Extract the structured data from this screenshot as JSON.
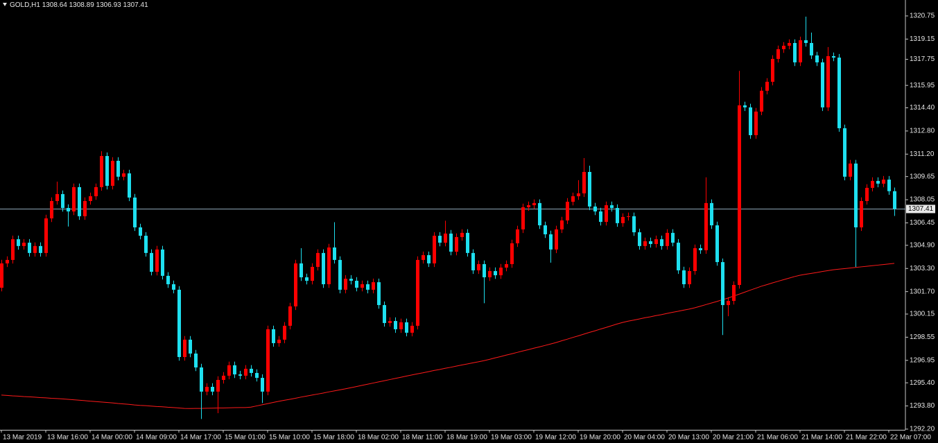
{
  "chart_data": {
    "type": "candlestick",
    "symbol": "GOLD,H1",
    "up_color": "#ff0000",
    "down_color": "#1ee0f0",
    "price_line_color": "#8fa8b8",
    "categories": [
      "13 Mar 2019",
      null,
      null,
      null,
      null,
      null,
      null,
      null,
      "13 Mar 16:00",
      null,
      null,
      null,
      null,
      null,
      null,
      null,
      "14 Mar 00:00",
      null,
      null,
      null,
      null,
      null,
      null,
      null,
      "14 Mar 09:00",
      null,
      null,
      null,
      null,
      null,
      null,
      null,
      "14 Mar 17:00",
      null,
      null,
      null,
      null,
      null,
      null,
      null,
      "15 Mar 01:00",
      null,
      null,
      null,
      null,
      null,
      null,
      null,
      "15 Mar 10:00",
      null,
      null,
      null,
      null,
      null,
      null,
      null,
      "15 Mar 18:00",
      null,
      null,
      null,
      null,
      null,
      null,
      null,
      "18 Mar 02:00",
      null,
      null,
      null,
      null,
      null,
      null,
      null,
      "18 Mar 11:00",
      null,
      null,
      null,
      null,
      null,
      null,
      null,
      "18 Mar 19:00",
      null,
      null,
      null,
      null,
      null,
      null,
      null,
      "19 Mar 03:00",
      null,
      null,
      null,
      null,
      null,
      null,
      null,
      "19 Mar 12:00",
      null,
      null,
      null,
      null,
      null,
      null,
      null,
      "19 Mar 20:00",
      null,
      null,
      null,
      null,
      null,
      null,
      null,
      "20 Mar 04:00",
      null,
      null,
      null,
      null,
      null,
      null,
      null,
      "20 Mar 13:00",
      null,
      null,
      null,
      null,
      null,
      null,
      null,
      "20 Mar 21:00",
      null,
      null,
      null,
      null,
      null,
      null,
      null,
      "21 Mar 06:00",
      null,
      null,
      null,
      null,
      null,
      null,
      null,
      "21 Mar 14:00",
      null,
      null,
      null,
      null,
      null,
      null,
      null,
      "21 Mar 22:00",
      null,
      null,
      null,
      null,
      null,
      null,
      null,
      "22 Mar 07:00",
      null
    ],
    "series": [
      {
        "open": [
          1301.97,
          1303.65,
          1303.89,
          1305.32,
          1304.85,
          1305.08,
          1304.37,
          1304.85,
          1304.37,
          1306.76,
          1307.96,
          1308.44,
          1307.48,
          1307.24,
          1308.92,
          1306.91,
          1307.96,
          1308.29,
          1308.92,
          1311.07,
          1309.01,
          1310.74,
          1309.64,
          1309.87,
          1308.2,
          1306.14,
          1305.56,
          1304.37,
          1303.07,
          1304.61,
          1302.79,
          1302.21,
          1301.83,
          1297.18,
          1298.38,
          1297.42,
          1296.46,
          1294.79,
          1295.12,
          1294.79,
          1295.6,
          1295.89,
          1296.61,
          1295.98,
          1295.89,
          1296.37,
          1296.08,
          1295.74,
          1294.79,
          1299.1,
          1298.14,
          1298.38,
          1299.34,
          1300.68,
          1303.65,
          1302.69,
          1302.45,
          1303.41,
          1304.37,
          1302.21,
          1304.75,
          1303.89,
          1301.83,
          1302.59,
          1302.45,
          1301.97,
          1302.21,
          1301.83,
          1302.35,
          1300.77,
          1299.53,
          1299.67,
          1299.1,
          1299.58,
          1298.86,
          1299.34,
          1303.89,
          1304.22,
          1303.65,
          1305.56,
          1305.08,
          1305.71,
          1304.46,
          1305.47,
          1305.76,
          1304.37,
          1303.17,
          1303.6,
          1302.69,
          1303.12,
          1302.83,
          1303.36,
          1303.6,
          1305.04,
          1306.0,
          1307.53,
          1307.67,
          1307.82,
          1306.28,
          1305.66,
          1304.61,
          1306.0,
          1306.62,
          1307.91,
          1308.29,
          1308.49,
          1309.97,
          1307.58,
          1307.24,
          1306.52,
          1307.67,
          1307.48,
          1306.43,
          1306.86,
          1306.91,
          1305.8,
          1304.85,
          1305.18,
          1304.99,
          1305.32,
          1304.85,
          1305.76,
          1305.08,
          1303.17,
          1302.21,
          1303.12,
          1304.7,
          1304.56,
          1307.82,
          1306.28,
          1303.74,
          1300.77,
          1301.06,
          1302.16,
          1314.57,
          1314.43,
          1312.51,
          1314.14,
          1315.58,
          1316.2,
          1317.78,
          1318.45,
          1318.69,
          1318.88,
          1317.54,
          1319.07,
          1318.88,
          1318.02,
          1317.54,
          1314.43,
          1317.97,
          1317.87,
          1312.99,
          1309.64,
          1310.55,
          1306.14,
          1307.96,
          1308.87,
          1309.35,
          1309.16,
          1309.44,
          1308.64
        ],
        "high": [
          1303.9,
          1304.14,
          1305.57,
          1305.57,
          1305.33,
          1305.33,
          1305.1,
          1305.1,
          1307.01,
          1308.21,
          1309.3,
          1308.69,
          1307.73,
          1309.17,
          1309.17,
          1308.21,
          1308.54,
          1309.17,
          1311.4,
          1311.32,
          1310.99,
          1310.99,
          1310.12,
          1310.12,
          1308.45,
          1306.39,
          1305.81,
          1304.62,
          1304.86,
          1304.86,
          1303.04,
          1302.46,
          1302.08,
          1298.63,
          1298.63,
          1297.67,
          1296.71,
          1295.37,
          1295.37,
          1295.85,
          1296.14,
          1296.86,
          1296.86,
          1296.23,
          1296.62,
          1296.62,
          1296.33,
          1295.99,
          1299.35,
          1299.35,
          1298.63,
          1299.59,
          1300.93,
          1303.9,
          1304.7,
          1302.94,
          1303.66,
          1304.62,
          1304.62,
          1305.0,
          1306.5,
          1304.14,
          1302.84,
          1302.84,
          1302.7,
          1302.46,
          1302.46,
          1302.6,
          1302.6,
          1301.02,
          1299.92,
          1299.92,
          1299.83,
          1299.83,
          1299.59,
          1304.14,
          1304.47,
          1304.47,
          1305.81,
          1305.81,
          1306.6,
          1305.96,
          1305.72,
          1306.01,
          1306.01,
          1304.62,
          1303.85,
          1303.85,
          1303.37,
          1303.37,
          1303.61,
          1303.85,
          1305.29,
          1306.25,
          1307.78,
          1307.92,
          1308.07,
          1308.07,
          1306.53,
          1305.91,
          1306.25,
          1306.87,
          1308.16,
          1308.54,
          1309.4,
          1310.93,
          1310.4,
          1307.83,
          1307.49,
          1307.92,
          1307.92,
          1307.73,
          1307.11,
          1307.16,
          1307.16,
          1306.05,
          1305.43,
          1305.43,
          1305.57,
          1305.57,
          1306.01,
          1306.01,
          1305.33,
          1303.42,
          1303.37,
          1304.95,
          1304.95,
          1309.6,
          1308.07,
          1306.53,
          1303.99,
          1301.31,
          1302.41,
          1316.95,
          1314.82,
          1314.68,
          1314.39,
          1315.83,
          1316.45,
          1318.03,
          1318.7,
          1318.94,
          1319.13,
          1319.13,
          1319.32,
          1320.7,
          1319.6,
          1318.27,
          1317.79,
          1318.6,
          1318.22,
          1318.12,
          1313.24,
          1310.8,
          1310.8,
          1308.21,
          1309.12,
          1309.6,
          1309.6,
          1309.69,
          1309.69,
          1308.89
        ],
        "low": [
          1301.72,
          1303.4,
          1303.64,
          1304.6,
          1304.6,
          1304.12,
          1304.12,
          1304.12,
          1304.12,
          1306.51,
          1307.71,
          1307.23,
          1306.2,
          1306.99,
          1306.66,
          1306.66,
          1307.71,
          1308.04,
          1308.67,
          1308.76,
          1308.76,
          1309.39,
          1309.39,
          1307.95,
          1305.89,
          1305.31,
          1304.12,
          1302.82,
          1302.82,
          1302.54,
          1301.96,
          1301.58,
          1296.93,
          1296.93,
          1297.17,
          1296.21,
          1292.9,
          1294.54,
          1294.54,
          1293.3,
          1295.35,
          1295.64,
          1295.73,
          1295.64,
          1295.64,
          1295.83,
          1295.49,
          1294.0,
          1294.54,
          1297.89,
          1297.89,
          1298.13,
          1299.09,
          1300.43,
          1302.44,
          1302.2,
          1302.2,
          1303.16,
          1301.96,
          1301.96,
          1303.64,
          1301.58,
          1301.58,
          1302.2,
          1301.72,
          1301.72,
          1301.58,
          1301.58,
          1300.52,
          1299.28,
          1299.28,
          1298.85,
          1298.85,
          1298.61,
          1298.61,
          1299.09,
          1303.64,
          1303.4,
          1303.4,
          1304.83,
          1304.83,
          1304.21,
          1304.21,
          1305.22,
          1304.12,
          1302.92,
          1302.92,
          1300.9,
          1302.44,
          1302.58,
          1302.58,
          1303.11,
          1303.35,
          1304.79,
          1305.75,
          1307.28,
          1307.42,
          1306.03,
          1305.41,
          1303.7,
          1304.36,
          1305.75,
          1306.37,
          1307.66,
          1308.04,
          1308.24,
          1307.33,
          1306.99,
          1306.27,
          1306.27,
          1307.23,
          1306.18,
          1306.18,
          1306.61,
          1305.55,
          1304.6,
          1304.6,
          1304.74,
          1304.74,
          1304.6,
          1304.6,
          1304.83,
          1302.92,
          1301.96,
          1301.96,
          1302.87,
          1304.31,
          1304.31,
          1306.03,
          1303.49,
          1298.7,
          1300.0,
          1300.81,
          1301.91,
          1314.18,
          1312.26,
          1312.26,
          1313.89,
          1315.33,
          1315.95,
          1317.53,
          1318.2,
          1318.44,
          1317.29,
          1317.29,
          1318.63,
          1317.77,
          1317.29,
          1314.18,
          1314.18,
          1317.62,
          1312.74,
          1309.39,
          1309.39,
          1303.41,
          1305.89,
          1307.71,
          1308.62,
          1308.91,
          1308.91,
          1308.39,
          1306.93
        ],
        "close": [
          1303.65,
          1303.89,
          1305.32,
          1304.85,
          1305.08,
          1304.37,
          1304.85,
          1304.37,
          1306.76,
          1307.96,
          1308.44,
          1307.48,
          1307.24,
          1308.92,
          1306.91,
          1307.96,
          1308.29,
          1308.92,
          1311.07,
          1309.01,
          1310.74,
          1309.64,
          1309.87,
          1308.2,
          1306.14,
          1305.56,
          1304.37,
          1303.07,
          1304.61,
          1302.79,
          1302.21,
          1301.83,
          1297.18,
          1298.38,
          1297.42,
          1296.46,
          1294.79,
          1295.12,
          1294.79,
          1295.6,
          1295.89,
          1296.61,
          1295.98,
          1295.89,
          1296.37,
          1296.08,
          1295.74,
          1294.79,
          1299.1,
          1298.14,
          1298.38,
          1299.34,
          1300.68,
          1303.65,
          1302.69,
          1302.45,
          1303.41,
          1304.37,
          1302.21,
          1304.75,
          1303.89,
          1301.83,
          1302.59,
          1302.45,
          1301.97,
          1302.21,
          1301.83,
          1302.35,
          1300.77,
          1299.53,
          1299.67,
          1299.1,
          1299.58,
          1298.86,
          1299.34,
          1303.89,
          1304.22,
          1303.65,
          1305.56,
          1305.08,
          1305.71,
          1304.46,
          1305.47,
          1305.76,
          1304.37,
          1303.17,
          1303.6,
          1302.69,
          1303.12,
          1302.83,
          1303.36,
          1303.6,
          1305.04,
          1306.0,
          1307.53,
          1307.67,
          1307.82,
          1306.28,
          1305.66,
          1304.61,
          1306.0,
          1306.62,
          1307.91,
          1308.29,
          1308.49,
          1309.97,
          1307.58,
          1307.24,
          1306.52,
          1307.67,
          1307.48,
          1306.43,
          1306.86,
          1306.91,
          1305.8,
          1304.85,
          1305.18,
          1304.99,
          1305.32,
          1304.85,
          1305.76,
          1305.08,
          1303.17,
          1302.21,
          1303.12,
          1304.7,
          1304.56,
          1307.82,
          1306.28,
          1303.74,
          1300.77,
          1301.06,
          1302.16,
          1314.57,
          1314.43,
          1312.51,
          1314.14,
          1315.58,
          1316.2,
          1317.78,
          1318.45,
          1318.69,
          1318.88,
          1317.54,
          1319.07,
          1318.88,
          1318.02,
          1317.54,
          1314.43,
          1317.97,
          1317.87,
          1312.99,
          1309.64,
          1310.55,
          1306.14,
          1307.96,
          1308.87,
          1309.35,
          1309.16,
          1309.44,
          1308.64,
          1307.41
        ]
      }
    ],
    "overlay": {
      "type": "line",
      "color": "#ff1a1a",
      "values": [
        1294.55,
        1294.53,
        1294.5,
        1294.48,
        1294.45,
        1294.43,
        1294.41,
        1294.38,
        1294.36,
        1294.33,
        1294.31,
        1294.29,
        1294.26,
        1294.23,
        1294.2,
        1294.17,
        1294.13,
        1294.1,
        1294.07,
        1294.04,
        1294.01,
        1293.97,
        1293.94,
        1293.91,
        1293.87,
        1293.84,
        1293.82,
        1293.79,
        1293.76,
        1293.74,
        1293.71,
        1293.69,
        1293.66,
        1293.63,
        1293.62,
        1293.63,
        1293.63,
        1293.64,
        1293.65,
        1293.66,
        1293.66,
        1293.67,
        1293.68,
        1293.69,
        1293.69,
        1293.72,
        1293.8,
        1293.88,
        1293.96,
        1294.04,
        1294.12,
        1294.19,
        1294.26,
        1294.33,
        1294.41,
        1294.48,
        1294.55,
        1294.62,
        1294.69,
        1294.77,
        1294.84,
        1294.91,
        1294.98,
        1295.06,
        1295.14,
        1295.22,
        1295.3,
        1295.38,
        1295.46,
        1295.54,
        1295.62,
        1295.7,
        1295.78,
        1295.86,
        1295.94,
        1296.02,
        1296.09,
        1296.17,
        1296.25,
        1296.32,
        1296.4,
        1296.47,
        1296.55,
        1296.63,
        1296.7,
        1296.78,
        1296.85,
        1296.93,
        1297.02,
        1297.12,
        1297.21,
        1297.31,
        1297.4,
        1297.5,
        1297.6,
        1297.69,
        1297.79,
        1297.88,
        1297.98,
        1298.08,
        1298.18,
        1298.3,
        1298.41,
        1298.53,
        1298.64,
        1298.76,
        1298.88,
        1298.99,
        1299.11,
        1299.22,
        1299.34,
        1299.46,
        1299.57,
        1299.66,
        1299.73,
        1299.81,
        1299.89,
        1299.96,
        1300.04,
        1300.11,
        1300.19,
        1300.27,
        1300.34,
        1300.42,
        1300.49,
        1300.58,
        1300.69,
        1300.8,
        1300.91,
        1301.02,
        1301.14,
        1301.25,
        1301.39,
        1301.52,
        1301.66,
        1301.8,
        1301.93,
        1302.07,
        1302.18,
        1302.3,
        1302.41,
        1302.52,
        1302.63,
        1302.74,
        1302.83,
        1302.9,
        1302.96,
        1303.02,
        1303.09,
        1303.15,
        1303.21,
        1303.25,
        1303.29,
        1303.33,
        1303.37,
        1303.41,
        1303.45,
        1303.49,
        1303.53,
        1303.57,
        1303.61,
        1303.65
      ]
    },
    "ylim": [
      1292.15,
      1321.85
    ],
    "yticks": [
      1320.75,
      1319.15,
      1317.75,
      1315.95,
      {
        "value": 1314.4,
        "label": "1314.40"
      },
      {
        "value": 1312.8,
        "label": "1312.80"
      },
      {
        "value": 1311.2,
        "label": "1311.20"
      },
      1309.65,
      1308.05,
      1306.45,
      {
        "value": 1304.9,
        "label": "1304.90"
      },
      {
        "value": 1303.3,
        "label": "1303.30"
      },
      {
        "value": 1301.7,
        "label": "1301.70"
      },
      1300.15,
      1298.55,
      1296.95,
      {
        "value": 1295.4,
        "label": "1295.40"
      },
      {
        "value": 1293.8,
        "label": "1293.80"
      },
      {
        "value": 1292.2,
        "label": "1292.20"
      }
    ]
  }
}
